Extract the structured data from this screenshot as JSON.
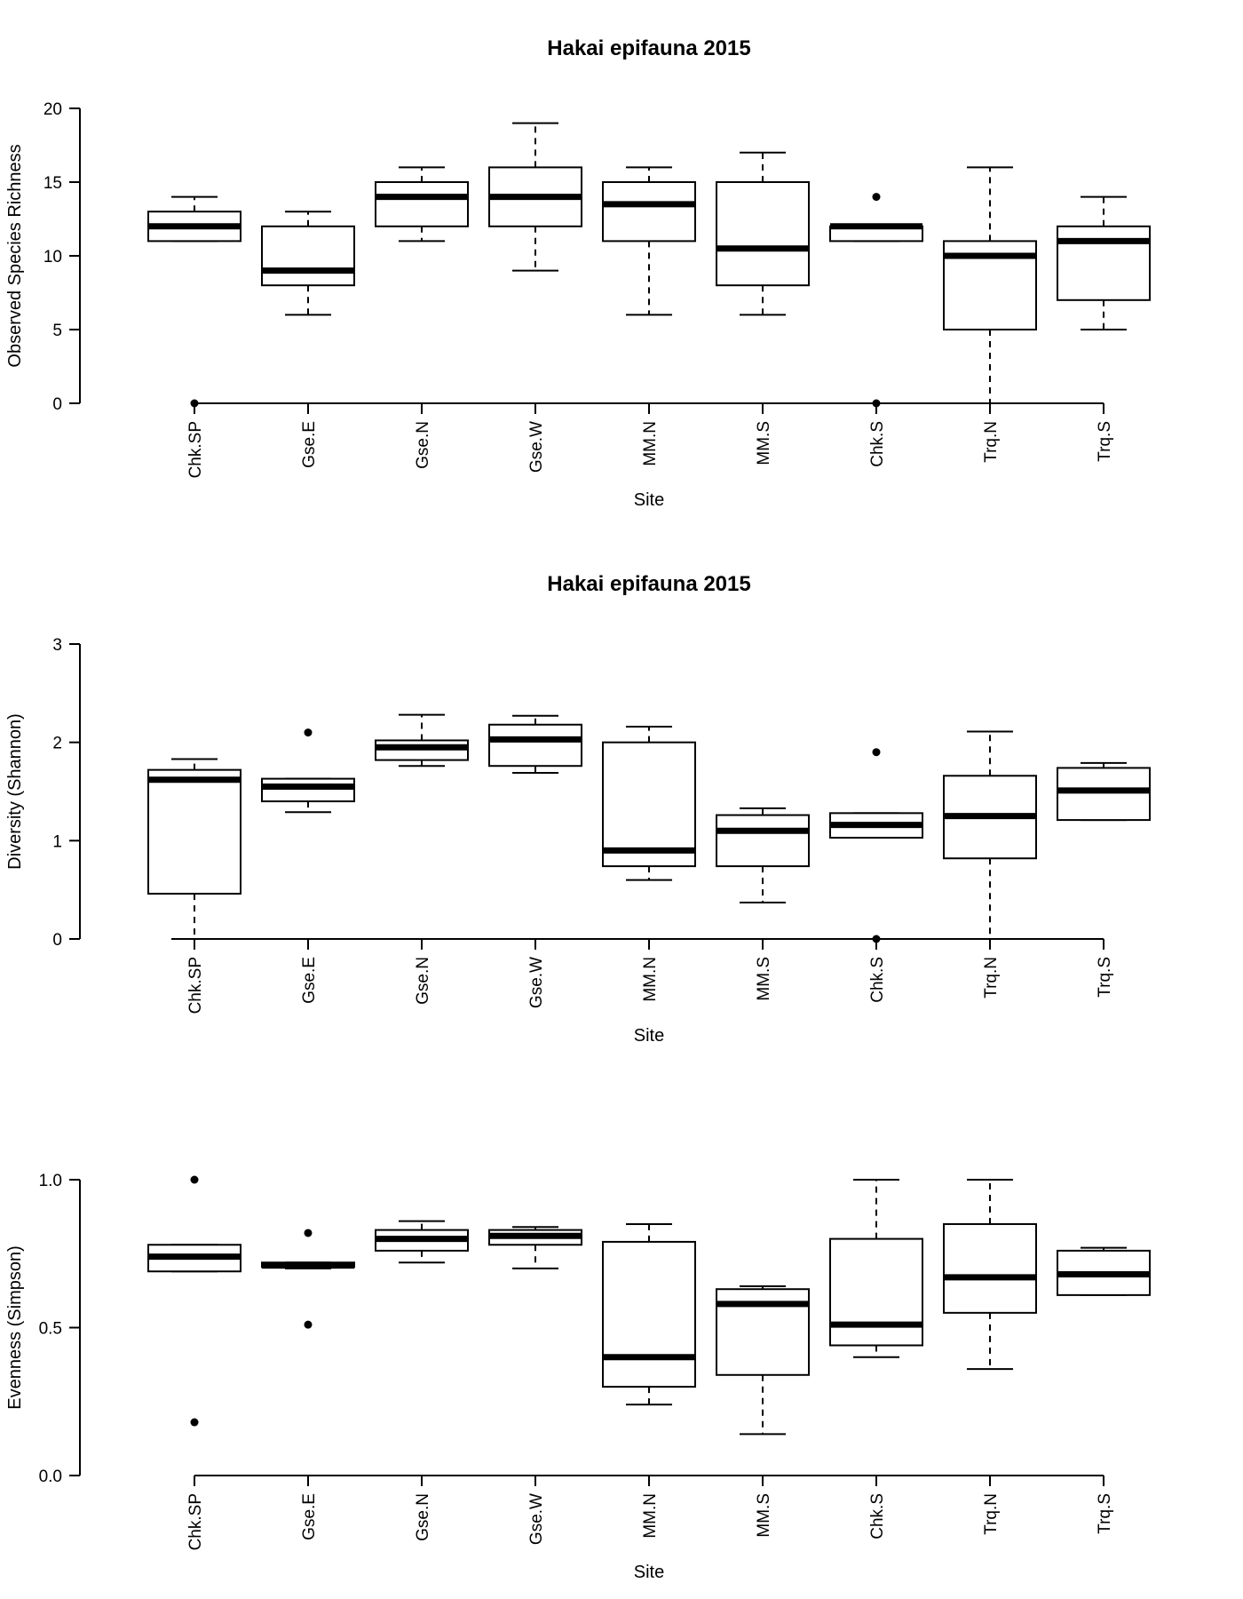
{
  "chart_data": [
    {
      "type": "boxplot",
      "title": "Hakai epifauna 2015",
      "xlabel": "Site",
      "ylabel": "Observed Species Richness",
      "ylim": [
        0,
        20
      ],
      "yticks": [
        "0",
        "5",
        "10",
        "15",
        "20"
      ],
      "categories": [
        "Chk.SP",
        "Gse.E",
        "Gse.N",
        "Gse.W",
        "MM.N",
        "MM.S",
        "Chk.S",
        "Trq.N",
        "Trq.S"
      ],
      "boxes": [
        {
          "min": 11,
          "q1": 11,
          "median": 12,
          "q3": 13,
          "max": 14,
          "outliers": [
            0
          ]
        },
        {
          "min": 6,
          "q1": 8,
          "median": 9,
          "q3": 12,
          "max": 13,
          "outliers": []
        },
        {
          "min": 11,
          "q1": 12,
          "median": 14,
          "q3": 15,
          "max": 16,
          "outliers": []
        },
        {
          "min": 9,
          "q1": 12,
          "median": 14,
          "q3": 16,
          "max": 19,
          "outliers": []
        },
        {
          "min": 6,
          "q1": 11,
          "median": 13.5,
          "q3": 15,
          "max": 16,
          "outliers": []
        },
        {
          "min": 6,
          "q1": 8,
          "median": 10.5,
          "q3": 15,
          "max": 17,
          "outliers": []
        },
        {
          "min": 11,
          "q1": 11,
          "median": 12,
          "q3": 12,
          "max": 12,
          "outliers": [
            14,
            0
          ]
        },
        {
          "min": 0,
          "q1": 5,
          "median": 10,
          "q3": 11,
          "max": 16,
          "outliers": []
        },
        {
          "min": 5,
          "q1": 7,
          "median": 11,
          "q3": 12,
          "max": 14,
          "outliers": []
        }
      ]
    },
    {
      "type": "boxplot",
      "title": "Hakai epifauna 2015",
      "xlabel": "Site",
      "ylabel": "Diversity (Shannon)",
      "ylim": [
        0,
        3
      ],
      "yticks": [
        "0",
        "1",
        "2",
        "3"
      ],
      "categories": [
        "Chk.SP",
        "Gse.E",
        "Gse.N",
        "Gse.W",
        "MM.N",
        "MM.S",
        "Chk.S",
        "Trq.N",
        "Trq.S"
      ],
      "boxes": [
        {
          "min": 0,
          "q1": 0.46,
          "median": 1.62,
          "q3": 1.72,
          "max": 1.83,
          "outliers": []
        },
        {
          "min": 1.29,
          "q1": 1.4,
          "median": 1.55,
          "q3": 1.63,
          "max": 1.63,
          "outliers": [
            2.1
          ]
        },
        {
          "min": 1.76,
          "q1": 1.82,
          "median": 1.95,
          "q3": 2.02,
          "max": 2.28,
          "outliers": []
        },
        {
          "min": 1.69,
          "q1": 1.76,
          "median": 2.03,
          "q3": 2.18,
          "max": 2.27,
          "outliers": []
        },
        {
          "min": 0.6,
          "q1": 0.74,
          "median": 0.9,
          "q3": 2.0,
          "max": 2.16,
          "outliers": []
        },
        {
          "min": 0.37,
          "q1": 0.74,
          "median": 1.1,
          "q3": 1.26,
          "max": 1.33,
          "outliers": []
        },
        {
          "min": 1.03,
          "q1": 1.03,
          "median": 1.16,
          "q3": 1.28,
          "max": 1.28,
          "outliers": [
            1.9,
            0
          ]
        },
        {
          "min": 0,
          "q1": 0.82,
          "median": 1.25,
          "q3": 1.66,
          "max": 2.11,
          "outliers": []
        },
        {
          "min": 1.21,
          "q1": 1.21,
          "median": 1.51,
          "q3": 1.74,
          "max": 1.79,
          "outliers": []
        }
      ]
    },
    {
      "type": "boxplot",
      "title": "",
      "xlabel": "Site",
      "ylabel": "Evenness (Simpson)",
      "ylim": [
        0,
        1
      ],
      "yticks": [
        "0.0",
        "0.5",
        "1.0"
      ],
      "categories": [
        "Chk.SP",
        "Gse.E",
        "Gse.N",
        "Gse.W",
        "MM.N",
        "MM.S",
        "Chk.S",
        "Trq.N",
        "Trq.S"
      ],
      "boxes": [
        {
          "min": 0.69,
          "q1": 0.69,
          "median": 0.74,
          "q3": 0.78,
          "max": 0.78,
          "outliers": [
            1.0,
            0.18
          ]
        },
        {
          "min": 0.7,
          "q1": 0.705,
          "median": 0.71,
          "q3": 0.72,
          "max": 0.72,
          "outliers": [
            0.82,
            0.51
          ]
        },
        {
          "min": 0.72,
          "q1": 0.76,
          "median": 0.8,
          "q3": 0.83,
          "max": 0.86,
          "outliers": []
        },
        {
          "min": 0.7,
          "q1": 0.78,
          "median": 0.81,
          "q3": 0.83,
          "max": 0.84,
          "outliers": []
        },
        {
          "min": 0.24,
          "q1": 0.3,
          "median": 0.4,
          "q3": 0.79,
          "max": 0.85,
          "outliers": []
        },
        {
          "min": 0.14,
          "q1": 0.34,
          "median": 0.58,
          "q3": 0.63,
          "max": 0.64,
          "outliers": []
        },
        {
          "min": 0.4,
          "q1": 0.44,
          "median": 0.51,
          "q3": 0.8,
          "max": 1.0,
          "outliers": []
        },
        {
          "min": 0.36,
          "q1": 0.55,
          "median": 0.67,
          "q3": 0.85,
          "max": 1.0,
          "outliers": []
        },
        {
          "min": 0.61,
          "q1": 0.61,
          "median": 0.68,
          "q3": 0.76,
          "max": 0.77,
          "outliers": []
        }
      ]
    }
  ]
}
